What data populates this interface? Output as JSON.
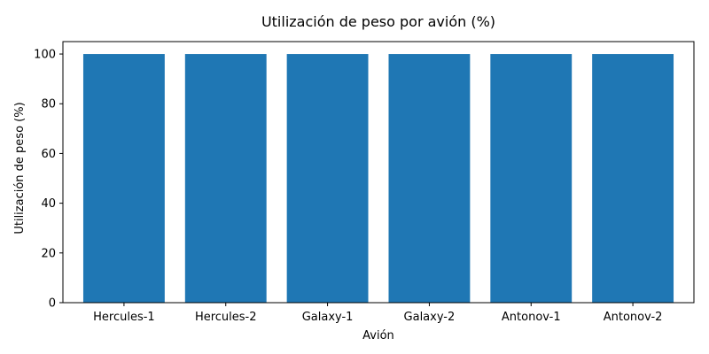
{
  "chart_data": {
    "type": "bar",
    "title": "Utilización de peso por avión (%)",
    "xlabel": "Avión",
    "ylabel": "Utilización de peso (%)",
    "categories": [
      "Hercules-1",
      "Hercules-2",
      "Galaxy-1",
      "Galaxy-2",
      "Antonov-1",
      "Antonov-2"
    ],
    "values": [
      100,
      100,
      100,
      100,
      100,
      100
    ],
    "ylim": [
      0,
      105
    ],
    "yticks": [
      0,
      20,
      40,
      60,
      80,
      100
    ],
    "bar_color": "#1f77b4",
    "grid": false,
    "legend": "none"
  }
}
